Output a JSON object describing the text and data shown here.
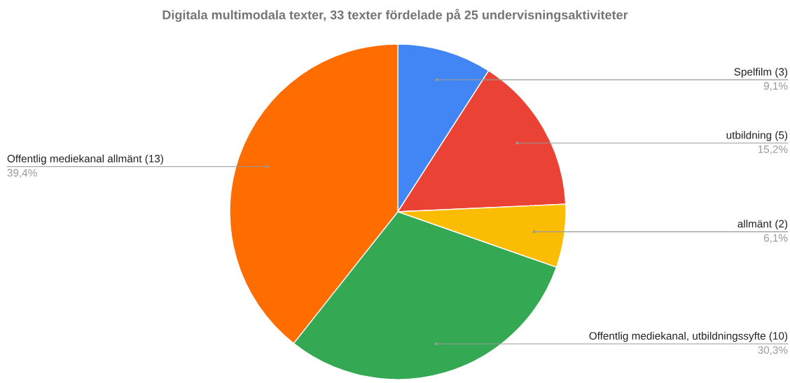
{
  "chart_data": {
    "type": "pie",
    "title": "Digitala multimodala texter, 33 texter fördelade på 25 undervisningsaktiviteter",
    "categories": [
      "Spelfilm (3)",
      "utbildning (5)",
      "allmänt (2)",
      "Offentlig mediekanal, utbildningssyfte (10)",
      "Offentlig mediekanal allmänt (13)"
    ],
    "values": [
      9.1,
      15.2,
      6.1,
      30.3,
      39.4
    ],
    "value_labels": [
      "9,1%",
      "15,2%",
      "6,1%",
      "30,3%",
      "39,4%"
    ],
    "colors": [
      "#4285f4",
      "#ea4335",
      "#fbbc04",
      "#34a853",
      "#ff6d01"
    ]
  }
}
